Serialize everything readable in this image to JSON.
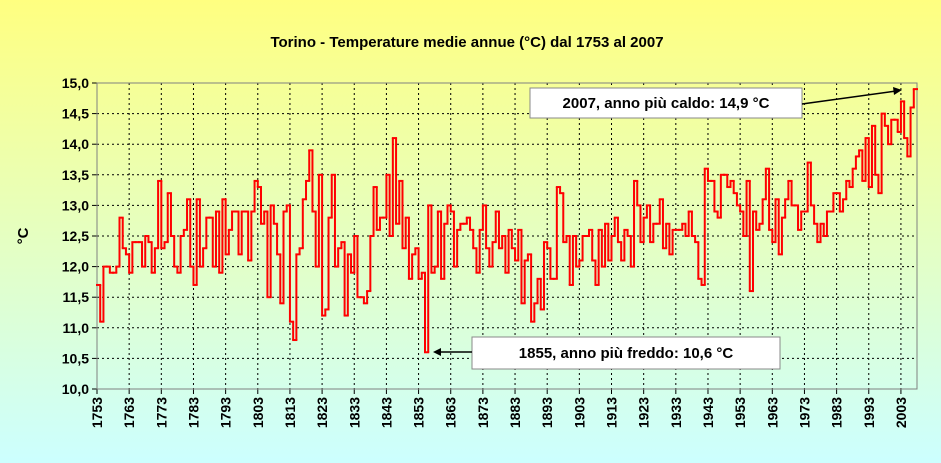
{
  "chart_data": {
    "type": "step",
    "title": "Torino - Temperature medie annue (°C) dal 1753 al 2007",
    "y_label": "°C",
    "annotations": [
      "2007, anno più caldo: 14,9 °C",
      "1855, anno più freddo: 10,6 °C"
    ],
    "color": "#ff0000",
    "grid": true,
    "xlim": [
      1753,
      2008
    ],
    "xticks": [
      1753,
      1763,
      1773,
      1783,
      1793,
      1803,
      1813,
      1823,
      1833,
      1843,
      1853,
      1863,
      1873,
      1883,
      1893,
      1903,
      1913,
      1923,
      1933,
      1943,
      1953,
      1963,
      1973,
      1983,
      1993,
      2003
    ],
    "ylim": [
      10,
      15
    ],
    "yticks": [
      {
        "value": 10,
        "label": "10,0"
      },
      {
        "value": 10.5,
        "label": "10,5"
      },
      {
        "value": 11,
        "label": "11,0"
      },
      {
        "value": 11.5,
        "label": "11,5"
      },
      {
        "value": 12,
        "label": "12,0"
      },
      {
        "value": 12.5,
        "label": "12,5"
      },
      {
        "value": 13,
        "label": "13,0"
      },
      {
        "value": 13.5,
        "label": "13,5"
      },
      {
        "value": 14,
        "label": "14,0"
      },
      {
        "value": 14.5,
        "label": "14,5"
      },
      {
        "value": 15,
        "label": "15,0"
      }
    ],
    "x": [
      1753,
      1754,
      1755,
      1756,
      1757,
      1758,
      1759,
      1760,
      1761,
      1762,
      1763,
      1764,
      1765,
      1766,
      1767,
      1768,
      1769,
      1770,
      1771,
      1772,
      1773,
      1774,
      1775,
      1776,
      1777,
      1778,
      1779,
      1780,
      1781,
      1782,
      1783,
      1784,
      1785,
      1786,
      1787,
      1788,
      1789,
      1790,
      1791,
      1792,
      1793,
      1794,
      1795,
      1796,
      1797,
      1798,
      1799,
      1800,
      1801,
      1802,
      1803,
      1804,
      1805,
      1806,
      1807,
      1808,
      1809,
      1810,
      1811,
      1812,
      1813,
      1814,
      1815,
      1816,
      1817,
      1818,
      1819,
      1820,
      1821,
      1822,
      1823,
      1824,
      1825,
      1826,
      1827,
      1828,
      1829,
      1830,
      1831,
      1832,
      1833,
      1834,
      1835,
      1836,
      1837,
      1838,
      1839,
      1840,
      1841,
      1842,
      1843,
      1844,
      1845,
      1846,
      1847,
      1848,
      1849,
      1850,
      1851,
      1852,
      1853,
      1854,
      1855,
      1856,
      1857,
      1858,
      1859,
      1860,
      1861,
      1862,
      1863,
      1864,
      1865,
      1866,
      1867,
      1868,
      1869,
      1870,
      1871,
      1872,
      1873,
      1874,
      1875,
      1876,
      1877,
      1878,
      1879,
      1880,
      1881,
      1882,
      1883,
      1884,
      1885,
      1886,
      1887,
      1888,
      1889,
      1890,
      1891,
      1892,
      1893,
      1894,
      1895,
      1896,
      1897,
      1898,
      1899,
      1900,
      1901,
      1902,
      1903,
      1904,
      1905,
      1906,
      1907,
      1908,
      1909,
      1910,
      1911,
      1912,
      1913,
      1914,
      1915,
      1916,
      1917,
      1918,
      1919,
      1920,
      1921,
      1922,
      1923,
      1924,
      1925,
      1926,
      1927,
      1928,
      1929,
      1930,
      1931,
      1932,
      1933,
      1934,
      1935,
      1936,
      1937,
      1938,
      1939,
      1940,
      1941,
      1942,
      1943,
      1944,
      1945,
      1946,
      1947,
      1948,
      1949,
      1950,
      1951,
      1952,
      1953,
      1954,
      1955,
      1956,
      1957,
      1958,
      1959,
      1960,
      1961,
      1962,
      1963,
      1964,
      1965,
      1966,
      1967,
      1968,
      1969,
      1970,
      1971,
      1972,
      1973,
      1974,
      1975,
      1976,
      1977,
      1978,
      1979,
      1980,
      1981,
      1982,
      1983,
      1984,
      1985,
      1986,
      1987,
      1988,
      1989,
      1990,
      1991,
      1992,
      1993,
      1994,
      1995,
      1996,
      1997,
      1998,
      1999,
      2000,
      2001,
      2002,
      2003,
      2004,
      2005,
      2006,
      2007
    ],
    "values": [
      11.7,
      11.1,
      12.0,
      12.0,
      11.9,
      11.9,
      12.0,
      12.8,
      12.3,
      12.2,
      11.9,
      12.4,
      12.4,
      12.4,
      12.0,
      12.5,
      12.4,
      11.9,
      12.3,
      13.4,
      12.3,
      12.4,
      13.2,
      12.5,
      12.0,
      11.9,
      12.5,
      12.6,
      13.1,
      12.0,
      11.7,
      13.1,
      12.0,
      12.3,
      12.8,
      12.8,
      12.0,
      12.9,
      11.9,
      13.1,
      12.2,
      12.6,
      12.9,
      12.9,
      12.2,
      12.9,
      12.9,
      12.1,
      12.9,
      13.4,
      13.3,
      12.7,
      12.9,
      11.5,
      13.0,
      12.7,
      12.2,
      11.4,
      12.9,
      13.0,
      11.1,
      10.8,
      12.2,
      12.3,
      13.1,
      13.4,
      13.9,
      12.9,
      12.0,
      13.5,
      11.2,
      11.3,
      12.8,
      13.5,
      12.0,
      12.3,
      12.4,
      11.2,
      12.2,
      11.9,
      12.5,
      11.5,
      11.5,
      11.4,
      11.6,
      12.5,
      13.3,
      12.6,
      12.8,
      12.8,
      13.5,
      12.5,
      14.1,
      12.7,
      13.4,
      12.3,
      12.8,
      11.8,
      12.2,
      12.3,
      11.8,
      11.9,
      10.6,
      13.0,
      11.9,
      12.0,
      12.9,
      11.8,
      12.7,
      13.0,
      12.9,
      12.0,
      12.6,
      12.7,
      12.7,
      12.8,
      12.6,
      12.3,
      11.9,
      12.6,
      13.0,
      12.3,
      12.0,
      12.4,
      12.9,
      12.3,
      12.5,
      11.9,
      12.6,
      12.3,
      12.1,
      12.6,
      11.4,
      12.1,
      12.2,
      11.1,
      11.4,
      11.8,
      11.3,
      12.4,
      12.3,
      11.8,
      11.8,
      13.3,
      13.2,
      12.4,
      12.5,
      11.7,
      12.5,
      12.0,
      12.1,
      12.5,
      12.5,
      12.6,
      12.1,
      11.7,
      12.6,
      12.0,
      12.7,
      12.1,
      12.5,
      12.8,
      12.4,
      12.1,
      12.6,
      12.5,
      12.0,
      13.4,
      13.0,
      12.4,
      12.8,
      13.0,
      12.4,
      12.7,
      12.7,
      13.1,
      12.3,
      12.7,
      12.2,
      12.6,
      12.6,
      12.6,
      12.7,
      12.5,
      12.9,
      12.5,
      12.4,
      11.8,
      11.7,
      13.6,
      13.4,
      13.4,
      12.9,
      12.8,
      13.5,
      13.5,
      13.3,
      13.4,
      13.2,
      13.0,
      12.9,
      12.5,
      13.4,
      11.6,
      12.9,
      12.6,
      12.7,
      13.1,
      13.6,
      12.6,
      12.4,
      13.1,
      12.2,
      12.8,
      13.1,
      13.4,
      13.0,
      13.0,
      12.6,
      12.9,
      12.9,
      13.7,
      13.0,
      12.7,
      12.4,
      12.7,
      12.5,
      12.9,
      12.9,
      13.2,
      13.2,
      12.9,
      13.1,
      13.4,
      13.3,
      13.6,
      13.8,
      13.9,
      13.4,
      14.1,
      13.3,
      14.3,
      13.5,
      13.2,
      14.5,
      14.3,
      14.0,
      14.4,
      14.4,
      14.2,
      14.7,
      14.1,
      13.8,
      14.6,
      14.9
    ]
  }
}
